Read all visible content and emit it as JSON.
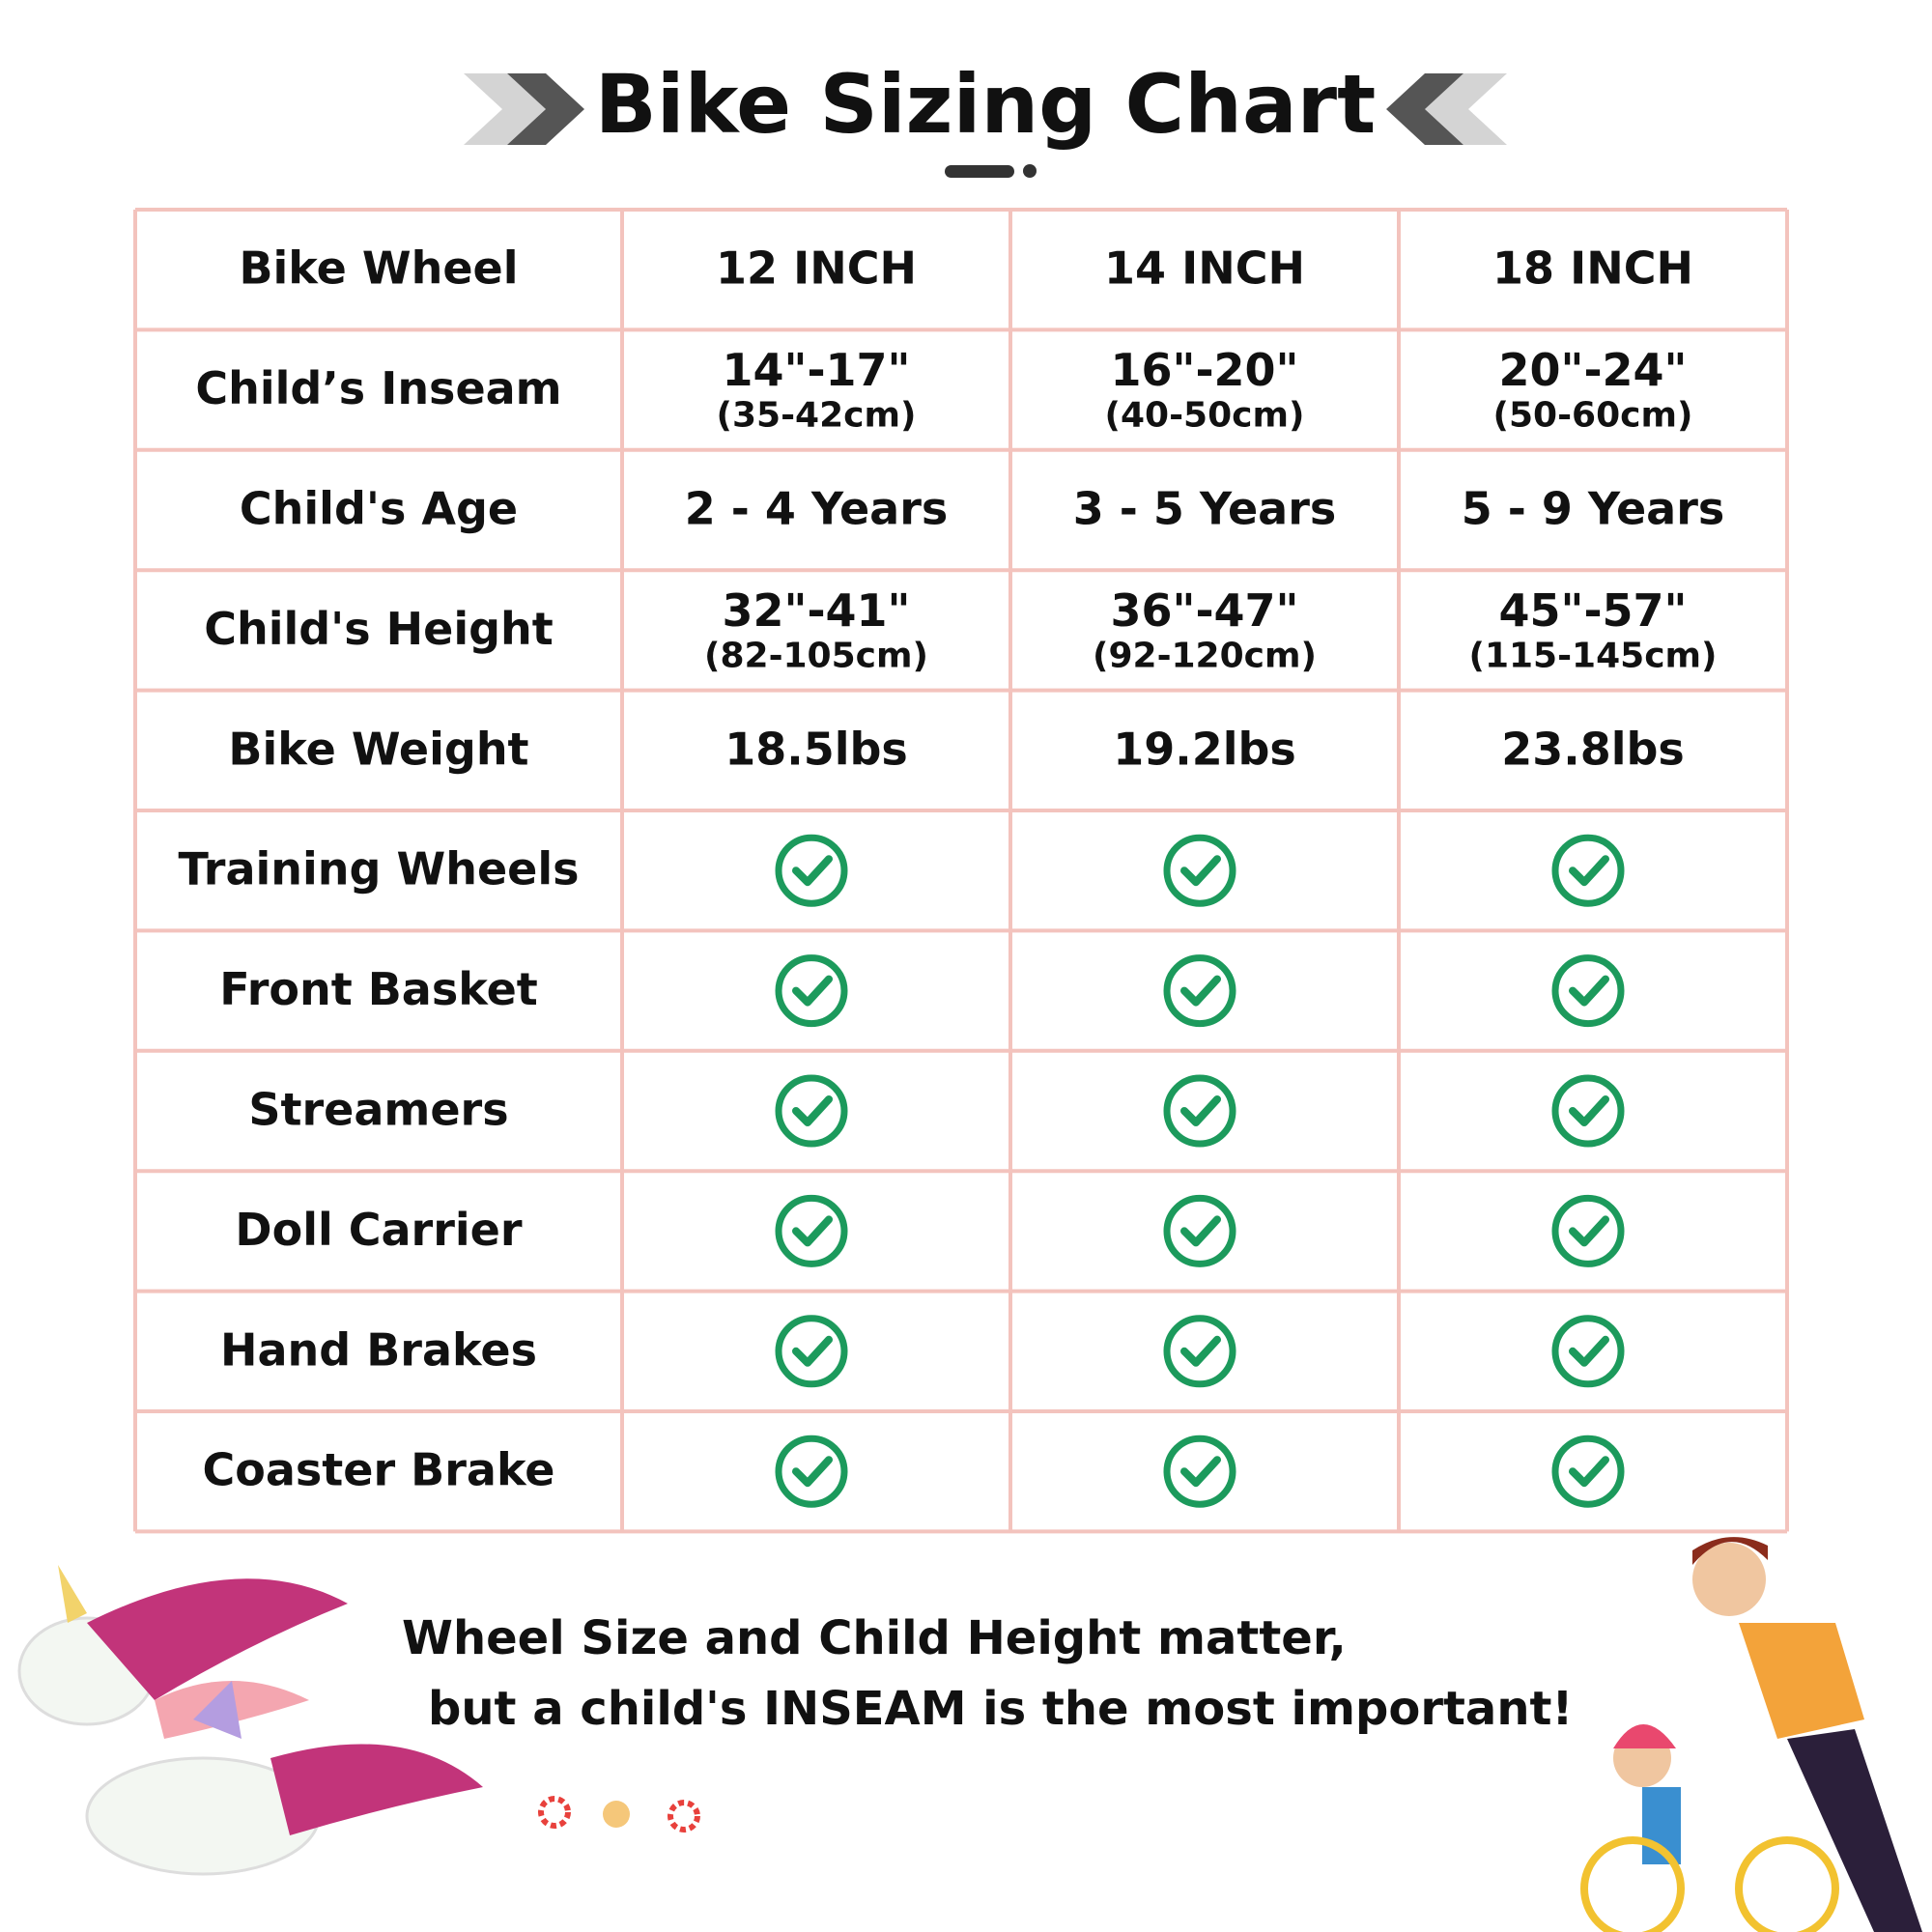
{
  "header": {
    "title": "Bike Sizing Chart"
  },
  "table": {
    "rows": [
      {
        "label": "Bike Wheel",
        "cells": [
          {
            "main": "12 INCH"
          },
          {
            "main": "14 INCH"
          },
          {
            "main": "18 INCH"
          }
        ]
      },
      {
        "label": "Child’s Inseam",
        "cells": [
          {
            "main": "14\"-17\"",
            "sub": "(35-42cm)"
          },
          {
            "main": "16\"-20\"",
            "sub": "(40-50cm)"
          },
          {
            "main": "20\"-24\"",
            "sub": "(50-60cm)"
          }
        ]
      },
      {
        "label": "Child's Age",
        "cells": [
          {
            "main": "2 - 4 Years"
          },
          {
            "main": "3 - 5 Years"
          },
          {
            "main": "5 - 9 Years"
          }
        ]
      },
      {
        "label": "Child's Height",
        "cells": [
          {
            "main": "32\"-41\"",
            "sub": "(82-105cm)"
          },
          {
            "main": "36\"-47\"",
            "sub": "(92-120cm)"
          },
          {
            "main": "45\"-57\"",
            "sub": "(115-145cm)"
          }
        ]
      },
      {
        "label": "Bike Weight",
        "cells": [
          {
            "main": "18.5lbs"
          },
          {
            "main": "19.2lbs"
          },
          {
            "main": "23.8lbs"
          }
        ]
      }
    ],
    "features": [
      "Training Wheels",
      "Front Basket",
      "Streamers",
      "Doll Carrier",
      "Hand Brakes",
      "Coaster Brake"
    ]
  },
  "footer": {
    "lines": [
      "Wheel Size and Child Height matter,",
      "but a child's INSEAM is the most important!"
    ]
  }
}
